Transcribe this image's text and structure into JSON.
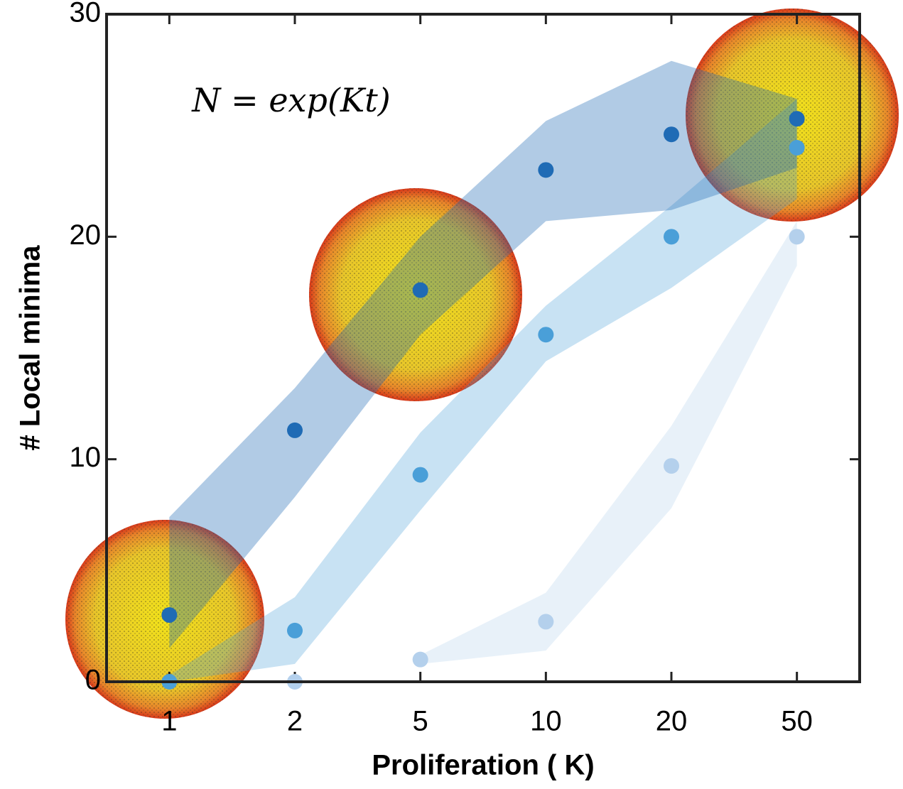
{
  "chart_data": {
    "type": "scatter_band",
    "annotation": "N = exp(Kt)",
    "xlabel": "Proliferation ( K)",
    "ylabel": "# Local minima",
    "categories": [
      "1",
      "2",
      "5",
      "10",
      "20",
      "50"
    ],
    "ylim": [
      0,
      30
    ],
    "yticks": [
      0,
      10,
      20,
      30
    ],
    "series": [
      {
        "color": "#1f6bb5",
        "band_opacity": 0.35,
        "values": [
          3.0,
          11.3,
          17.6,
          23.0,
          24.6,
          25.3
        ],
        "lower": [
          1.5,
          8.3,
          15.6,
          20.7,
          21.2,
          23.1
        ],
        "upper": [
          7.4,
          13.2,
          20.0,
          25.2,
          27.9,
          26.2
        ]
      },
      {
        "color": "#4a9fd8",
        "band_opacity": 0.3,
        "values": [
          0,
          2.3,
          9.3,
          15.6,
          20.0,
          24.0
        ],
        "lower": [
          0,
          0.8,
          7.7,
          14.4,
          17.7,
          21.7
        ],
        "upper": [
          0.3,
          3.8,
          11.2,
          16.9,
          21.4,
          26.2
        ]
      },
      {
        "color": "#b4d0ec",
        "band_opacity": 0.3,
        "values": [
          null,
          0,
          1.0,
          2.7,
          9.7,
          20.0
        ],
        "lower": [
          null,
          null,
          0.8,
          1.4,
          7.8,
          18.7
        ],
        "upper": [
          null,
          null,
          1.2,
          4.0,
          11.5,
          20.7
        ]
      }
    ]
  }
}
